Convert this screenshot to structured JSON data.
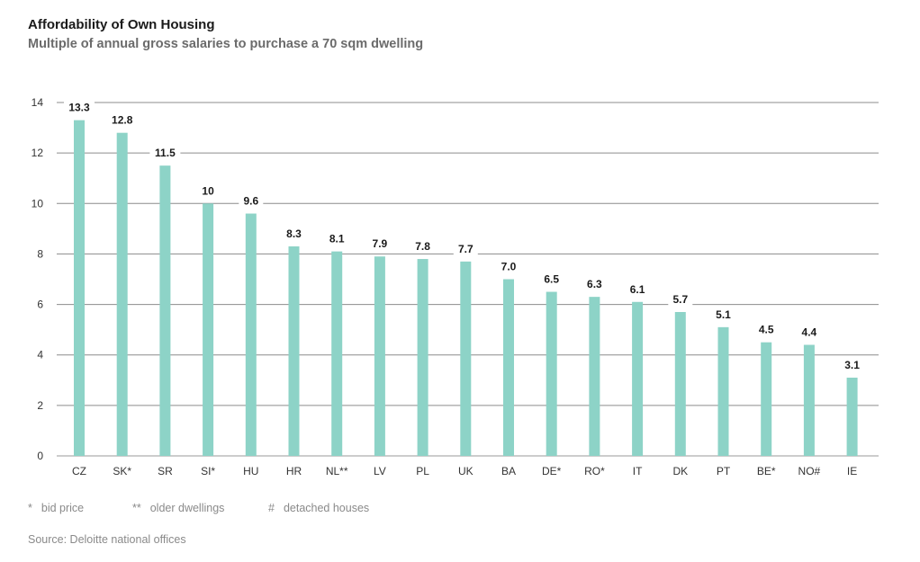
{
  "title": "Affordability of Own Housing",
  "subtitle": "Multiple of annual gross salaries to purchase a 70 sqm dwelling",
  "chart_data": {
    "type": "bar",
    "title": "Affordability of Own Housing",
    "subtitle": "Multiple of annual gross salaries to purchase a 70 sqm dwelling",
    "categories": [
      "CZ",
      "SK*",
      "SR",
      "SI*",
      "HU",
      "HR",
      "NL**",
      "LV",
      "PL",
      "UK",
      "BA",
      "DE*",
      "RO*",
      "IT",
      "DK",
      "PT",
      "BE*",
      "NO#",
      "IE"
    ],
    "values": [
      13.3,
      12.8,
      11.5,
      10,
      9.6,
      8.3,
      8.1,
      7.9,
      7.8,
      7.7,
      7.0,
      6.5,
      6.3,
      6.1,
      5.7,
      5.1,
      4.5,
      4.4,
      3.1
    ],
    "value_labels": [
      "13.3",
      "12.8",
      "11.5",
      "10",
      "9.6",
      "8.3",
      "8.1",
      "7.9",
      "7.8",
      "7.7",
      "7.0",
      "6.5",
      "6.3",
      "6.1",
      "5.7",
      "5.1",
      "4.5",
      "4.4",
      "3.1"
    ],
    "yticks": [
      "0",
      "2",
      "4",
      "6",
      "8",
      "10",
      "12",
      "14"
    ],
    "ylim": [
      0,
      14
    ],
    "grid": true,
    "bar_color": "#8dd3c7",
    "xlabel": "",
    "ylabel": ""
  },
  "notes": [
    {
      "symbol": "*",
      "text": "bid price"
    },
    {
      "symbol": "**",
      "text": "older dwellings"
    },
    {
      "symbol": "#",
      "text": "detached houses"
    }
  ],
  "source": "Source: Deloitte national offices"
}
